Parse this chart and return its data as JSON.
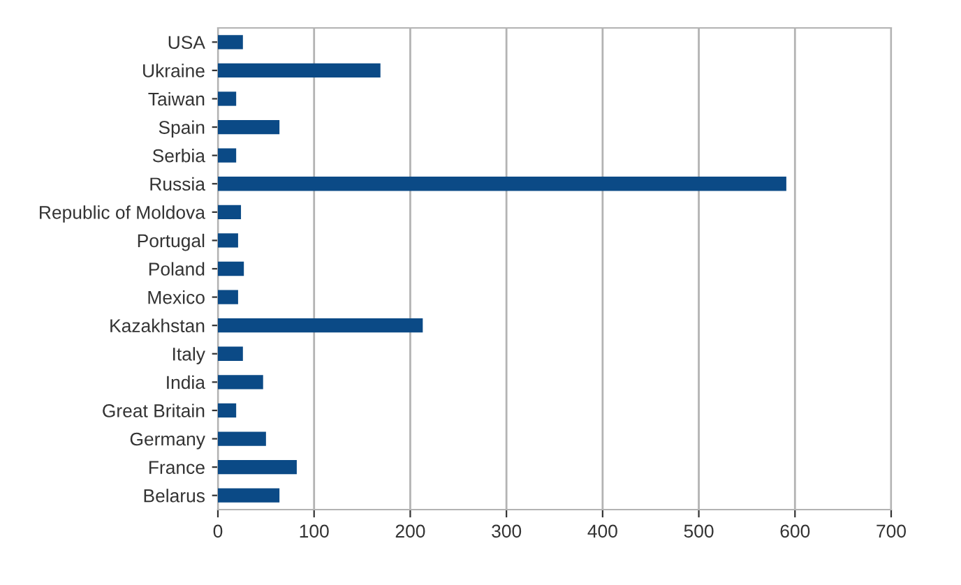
{
  "chart_data": {
    "type": "bar",
    "orientation": "horizontal",
    "categories": [
      "USA",
      "Ukraine",
      "Taiwan",
      "Spain",
      "Serbia",
      "Russia",
      "Republic of Moldova",
      "Portugal",
      "Poland",
      "Mexico",
      "Kazakhstan",
      "Italy",
      "India",
      "Great Britain",
      "Germany",
      "France",
      "Belarus"
    ],
    "values": [
      26,
      169,
      19,
      64,
      19,
      591,
      24,
      21,
      27,
      21,
      213,
      26,
      47,
      19,
      50,
      82,
      64
    ],
    "color": "#0b4a86",
    "xlim": [
      0,
      700
    ],
    "xticks": [
      0,
      100,
      200,
      300,
      400,
      500,
      600,
      700
    ],
    "grid": "x"
  }
}
